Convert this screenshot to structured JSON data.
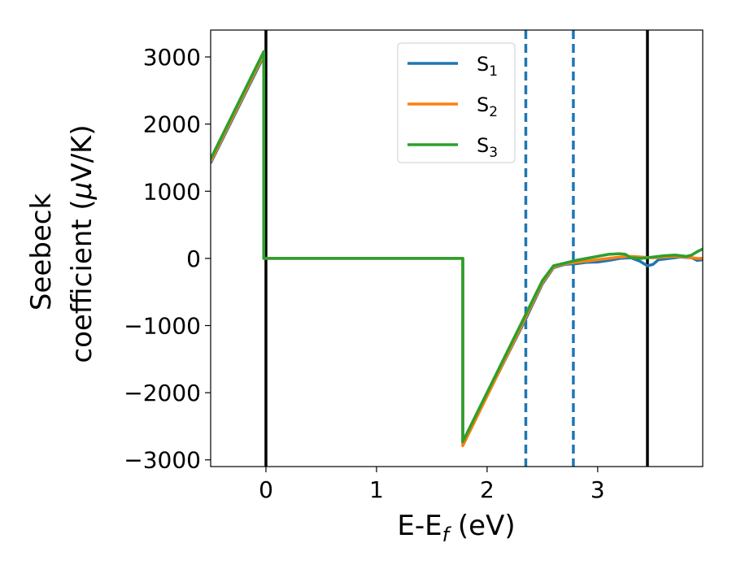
{
  "chart_data": {
    "type": "line",
    "title": "",
    "xlabel": "E-E_f (eV)",
    "xlabel_parts": {
      "base": "E-E",
      "sub": "f",
      "rest": " (eV)"
    },
    "ylabel_line1": "Seebeck",
    "ylabel_line2_prefix": "coefficient  (",
    "ylabel_mu": "μ",
    "ylabel_line2_suffix": "V/K)",
    "xlim": [
      -0.5,
      3.95
    ],
    "ylim": [
      -3100,
      3400
    ],
    "xticks": [
      0,
      1,
      2,
      3
    ],
    "xtick_labels": [
      "0",
      "1",
      "2",
      "3"
    ],
    "yticks": [
      -3000,
      -2000,
      -1000,
      0,
      1000,
      2000,
      3000
    ],
    "ytick_labels": [
      "−3000",
      "−2000",
      "−1000",
      "0",
      "1000",
      "2000",
      "3000"
    ],
    "grid": false,
    "legend_position": "top-center",
    "vlines": [
      {
        "x": 0.0,
        "style": "solid",
        "color": "#000000"
      },
      {
        "x": 3.45,
        "style": "solid",
        "color": "#000000"
      },
      {
        "x": 2.35,
        "style": "dashed",
        "color": "#1f77b4"
      },
      {
        "x": 2.78,
        "style": "dashed",
        "color": "#1f77b4"
      }
    ],
    "series": [
      {
        "name": "S1",
        "name_base": "S",
        "name_sub": "1",
        "color": "#1f77b4",
        "points": [
          [
            -0.5,
            1420
          ],
          [
            -0.02,
            3010
          ],
          [
            -0.02,
            0
          ],
          [
            1.78,
            0
          ],
          [
            1.78,
            -2760
          ],
          [
            2.35,
            -900
          ],
          [
            2.5,
            -380
          ],
          [
            2.6,
            -140
          ],
          [
            2.7,
            -90
          ],
          [
            2.8,
            -80
          ],
          [
            2.9,
            -60
          ],
          [
            3.0,
            -55
          ],
          [
            3.1,
            -30
          ],
          [
            3.2,
            0
          ],
          [
            3.3,
            10
          ],
          [
            3.38,
            -40
          ],
          [
            3.45,
            -110
          ],
          [
            3.5,
            -90
          ],
          [
            3.55,
            -20
          ],
          [
            3.65,
            0
          ],
          [
            3.75,
            20
          ],
          [
            3.85,
            10
          ],
          [
            3.9,
            -30
          ],
          [
            3.95,
            -20
          ]
        ]
      },
      {
        "name": "S2",
        "name_base": "S",
        "name_sub": "2",
        "color": "#ff7f0e",
        "points": [
          [
            -0.5,
            1440
          ],
          [
            -0.02,
            3040
          ],
          [
            -0.02,
            0
          ],
          [
            1.78,
            0
          ],
          [
            1.78,
            -2790
          ],
          [
            2.35,
            -870
          ],
          [
            2.5,
            -360
          ],
          [
            2.6,
            -130
          ],
          [
            2.7,
            -80
          ],
          [
            2.8,
            -60
          ],
          [
            2.9,
            -40
          ],
          [
            3.0,
            -20
          ],
          [
            3.1,
            0
          ],
          [
            3.2,
            20
          ],
          [
            3.3,
            30
          ],
          [
            3.4,
            20
          ],
          [
            3.5,
            10
          ],
          [
            3.6,
            20
          ],
          [
            3.7,
            30
          ],
          [
            3.8,
            20
          ],
          [
            3.9,
            0
          ],
          [
            3.95,
            0
          ]
        ]
      },
      {
        "name": "S3",
        "name_base": "S",
        "name_sub": "3",
        "color": "#2ca02c",
        "points": [
          [
            -0.5,
            1480
          ],
          [
            -0.02,
            3080
          ],
          [
            -0.02,
            0
          ],
          [
            1.78,
            0
          ],
          [
            1.78,
            -2730
          ],
          [
            2.35,
            -830
          ],
          [
            2.5,
            -330
          ],
          [
            2.6,
            -110
          ],
          [
            2.7,
            -70
          ],
          [
            2.8,
            -30
          ],
          [
            2.9,
            0
          ],
          [
            3.0,
            30
          ],
          [
            3.1,
            60
          ],
          [
            3.2,
            70
          ],
          [
            3.25,
            60
          ],
          [
            3.3,
            10
          ],
          [
            3.4,
            0
          ],
          [
            3.5,
            20
          ],
          [
            3.6,
            40
          ],
          [
            3.7,
            50
          ],
          [
            3.8,
            30
          ],
          [
            3.85,
            50
          ],
          [
            3.9,
            100
          ],
          [
            3.95,
            140
          ]
        ]
      }
    ]
  }
}
